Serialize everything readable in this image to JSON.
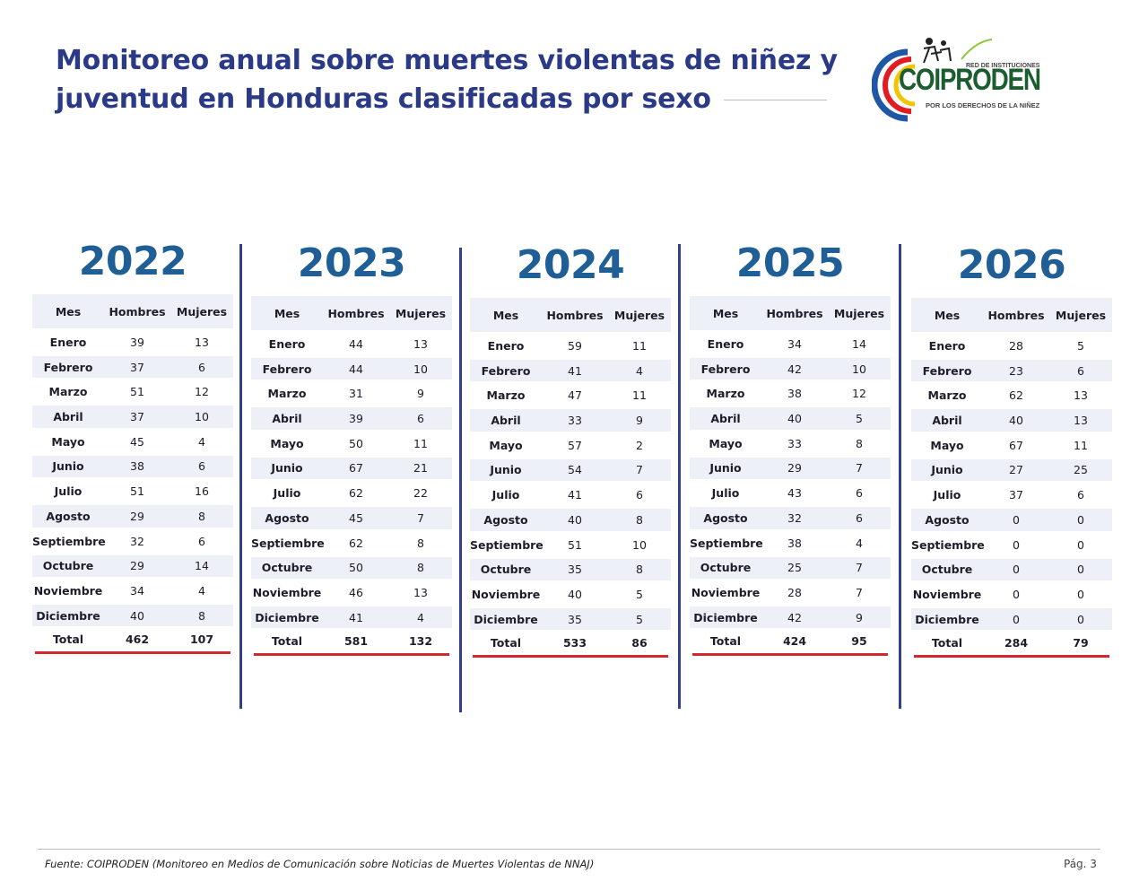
{
  "header": {
    "title_line1": "Monitoreo anual sobre muertes violentas de niñez y",
    "title_line2": "juventud en Honduras clasificadas por sexo"
  },
  "logo": {
    "name": "COIPRODEN",
    "top_text": "RED DE INSTITUCIONES",
    "bottom_text": "POR LOS DERECHOS DE LA NIÑEZ",
    "colors": [
      "#1f57a6",
      "#e31b23",
      "#f3c400",
      "#1b7a3a"
    ]
  },
  "columns": {
    "mes": "Mes",
    "hombres": "Hombres",
    "mujeres": "Mujeres"
  },
  "tables": [
    {
      "year": "2022",
      "rows": [
        [
          "Enero",
          "39",
          "13"
        ],
        [
          "Febrero",
          "37",
          "6"
        ],
        [
          "Marzo",
          "51",
          "12"
        ],
        [
          "Abril",
          "37",
          "10"
        ],
        [
          "Mayo",
          "45",
          "4"
        ],
        [
          "Junio",
          "38",
          "6"
        ],
        [
          "Julio",
          "51",
          "16"
        ],
        [
          "Agosto",
          "29",
          "8"
        ],
        [
          "Septiembre",
          "32",
          "6"
        ],
        [
          "Octubre",
          "29",
          "14"
        ],
        [
          "Noviembre",
          "34",
          "4"
        ],
        [
          "Diciembre",
          "40",
          "8"
        ]
      ],
      "total": [
        "Total",
        "462",
        "107"
      ]
    },
    {
      "year": "2023",
      "rows": [
        [
          "Enero",
          "44",
          "13"
        ],
        [
          "Febrero",
          "44",
          "10"
        ],
        [
          "Marzo",
          "31",
          "9"
        ],
        [
          "Abril",
          "39",
          "6"
        ],
        [
          "Mayo",
          "50",
          "11"
        ],
        [
          "Junio",
          "67",
          "21"
        ],
        [
          "Julio",
          "62",
          "22"
        ],
        [
          "Agosto",
          "45",
          "7"
        ],
        [
          "Septiembre",
          "62",
          "8"
        ],
        [
          "Octubre",
          "50",
          "8"
        ],
        [
          "Noviembre",
          "46",
          "13"
        ],
        [
          "Diciembre",
          "41",
          "4"
        ]
      ],
      "total": [
        "Total",
        "581",
        "132"
      ]
    },
    {
      "year": "2024",
      "rows": [
        [
          "Enero",
          "59",
          "11"
        ],
        [
          "Febrero",
          "41",
          "4"
        ],
        [
          "Marzo",
          "47",
          "11"
        ],
        [
          "Abril",
          "33",
          "9"
        ],
        [
          "Mayo",
          "57",
          "2"
        ],
        [
          "Junio",
          "54",
          "7"
        ],
        [
          "Julio",
          "41",
          "6"
        ],
        [
          "Agosto",
          "40",
          "8"
        ],
        [
          "Septiembre",
          "51",
          "10"
        ],
        [
          "Octubre",
          "35",
          "8"
        ],
        [
          "Noviembre",
          "40",
          "5"
        ],
        [
          "Diciembre",
          "35",
          "5"
        ]
      ],
      "total": [
        "Total",
        "533",
        "86"
      ]
    },
    {
      "year": "2025",
      "rows": [
        [
          "Enero",
          "34",
          "14"
        ],
        [
          "Febrero",
          "42",
          "10"
        ],
        [
          "Marzo",
          "38",
          "12"
        ],
        [
          "Abril",
          "40",
          "5"
        ],
        [
          "Mayo",
          "33",
          "8"
        ],
        [
          "Junio",
          "29",
          "7"
        ],
        [
          "Julio",
          "43",
          "6"
        ],
        [
          "Agosto",
          "32",
          "6"
        ],
        [
          "Septiembre",
          "38",
          "4"
        ],
        [
          "Octubre",
          "25",
          "7"
        ],
        [
          "Noviembre",
          "28",
          "7"
        ],
        [
          "Diciembre",
          "42",
          "9"
        ]
      ],
      "total": [
        "Total",
        "424",
        "95"
      ]
    },
    {
      "year": "2026",
      "rows": [
        [
          "Enero",
          "28",
          "5"
        ],
        [
          "Febrero",
          "23",
          "6"
        ],
        [
          "Marzo",
          "62",
          "13"
        ],
        [
          "Abril",
          "40",
          "13"
        ],
        [
          "Mayo",
          "67",
          "11"
        ],
        [
          "Junio",
          "27",
          "25"
        ],
        [
          "Julio",
          "37",
          "6"
        ],
        [
          "Agosto",
          "0",
          "0"
        ],
        [
          "Septiembre",
          "0",
          "0"
        ],
        [
          "Octubre",
          "0",
          "0"
        ],
        [
          "Noviembre",
          "0",
          "0"
        ],
        [
          "Diciembre",
          "0",
          "0"
        ]
      ],
      "total": [
        "Total",
        "284",
        "79"
      ]
    }
  ],
  "footer": {
    "source": "Fuente: COIPRODEN (Monitoreo en Medios de Comunicación sobre Noticias de Muertes Violentas de NNAJ)",
    "page": "Pág. 3"
  }
}
